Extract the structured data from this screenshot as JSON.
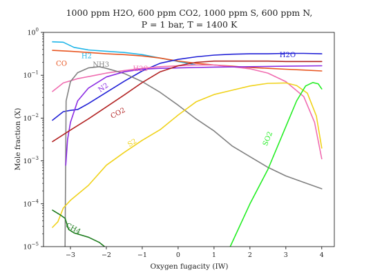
{
  "chart_data": {
    "type": "line",
    "title": "1000 ppm H2O, 600 ppm CO2, 1000 ppm S, 600 ppm N,",
    "subtitle": "P = 1 bar, T = 1400 K",
    "xlabel": "Oxygen fugacity (IW)",
    "ylabel": "Mole fraction (X)",
    "xlim": [
      -3.75,
      4.35
    ],
    "ylim_log10": [
      -5,
      0
    ],
    "yscale": "log",
    "grid": false,
    "legend": "none",
    "xticks": [
      {
        "value": -3,
        "label": "−3"
      },
      {
        "value": -2,
        "label": "−2"
      },
      {
        "value": -1,
        "label": "−1"
      },
      {
        "value": 0,
        "label": "0"
      },
      {
        "value": 1,
        "label": "1"
      },
      {
        "value": 2,
        "label": "2"
      },
      {
        "value": 3,
        "label": "3"
      },
      {
        "value": 4,
        "label": "4"
      }
    ],
    "yticks": [
      {
        "log10": -5,
        "base": "10",
        "exp": "−5"
      },
      {
        "log10": -4,
        "base": "10",
        "exp": "−4"
      },
      {
        "log10": -3,
        "base": "10",
        "exp": "−3"
      },
      {
        "log10": -2,
        "base": "10",
        "exp": "−2"
      },
      {
        "log10": -1,
        "base": "10",
        "exp": "−1"
      },
      {
        "log10": 0,
        "base": "10",
        "exp": "0"
      }
    ],
    "series": [
      {
        "name": "H2",
        "color": "#1fb5e8",
        "label_at": [
          -2.55,
          -0.6
        ],
        "label_rotate": 0,
        "points": [
          [
            -3.5,
            -0.22
          ],
          [
            -3.2,
            -0.23
          ],
          [
            -2.9,
            -0.35
          ],
          [
            -2.5,
            -0.41
          ],
          [
            -2,
            -0.44
          ],
          [
            -1.5,
            -0.47
          ],
          [
            -1,
            -0.52
          ],
          [
            -0.5,
            -0.6
          ],
          [
            0,
            -0.68
          ],
          [
            0.5,
            -0.76
          ]
        ]
      },
      {
        "name": "CO",
        "color": "#e8541f",
        "label_at": [
          -3.25,
          -0.78
        ],
        "label_rotate": 0,
        "points": [
          [
            -3.5,
            -0.42
          ],
          [
            -3,
            -0.44
          ],
          [
            -2.5,
            -0.47
          ],
          [
            -2,
            -0.5
          ],
          [
            -1.5,
            -0.52
          ],
          [
            -1,
            -0.55
          ],
          [
            -0.5,
            -0.6
          ],
          [
            0,
            -0.67
          ],
          [
            0.5,
            -0.72
          ],
          [
            1,
            -0.76
          ],
          [
            1.5,
            -0.79
          ],
          [
            2,
            -0.82
          ],
          [
            2.5,
            -0.84
          ],
          [
            3,
            -0.86
          ],
          [
            3.5,
            -0.88
          ],
          [
            4,
            -0.9
          ]
        ]
      },
      {
        "name": "H2O",
        "color": "#1f1fd6",
        "label_at": [
          3.05,
          -0.58
        ],
        "label_rotate": 0,
        "points": [
          [
            -3.5,
            -2.05
          ],
          [
            -3.2,
            -1.85
          ],
          [
            -3,
            -1.82
          ],
          [
            -2.8,
            -1.8
          ],
          [
            -2.5,
            -1.66
          ],
          [
            -2,
            -1.4
          ],
          [
            -1.5,
            -1.14
          ],
          [
            -1,
            -0.9
          ],
          [
            -0.5,
            -0.72
          ],
          [
            0,
            -0.63
          ],
          [
            0.5,
            -0.57
          ],
          [
            1,
            -0.53
          ],
          [
            1.5,
            -0.51
          ],
          [
            2,
            -0.5
          ],
          [
            2.5,
            -0.5
          ],
          [
            3,
            -0.49
          ],
          [
            3.5,
            -0.49
          ],
          [
            4,
            -0.5
          ]
        ]
      },
      {
        "name": "H2S",
        "color": "#f06cb0",
        "label_at": [
          -1.05,
          -0.9
        ],
        "label_rotate": 0,
        "points": [
          [
            -3.5,
            -1.38
          ],
          [
            -3.2,
            -1.18
          ],
          [
            -2.8,
            -1.08
          ],
          [
            -2.3,
            -1
          ],
          [
            -2,
            -0.95
          ],
          [
            -1.5,
            -0.89
          ],
          [
            -1,
            -0.84
          ],
          [
            -0.5,
            -0.8
          ],
          [
            0,
            -0.78
          ],
          [
            0.5,
            -0.76
          ],
          [
            1,
            -0.76
          ],
          [
            1.5,
            -0.8
          ],
          [
            2,
            -0.85
          ],
          [
            2.5,
            -0.95
          ],
          [
            3,
            -1.15
          ],
          [
            3.5,
            -1.5
          ],
          [
            3.8,
            -2.1
          ],
          [
            4,
            -2.95
          ]
        ]
      },
      {
        "name": "NH3",
        "color": "#808080",
        "label_at": [
          -2.15,
          -0.8
        ],
        "label_rotate": 0,
        "points": [
          [
            -3.15,
            -5
          ],
          [
            -3.12,
            -1.6
          ],
          [
            -3,
            -1.15
          ],
          [
            -2.8,
            -0.94
          ],
          [
            -2.5,
            -0.83
          ],
          [
            -2.2,
            -0.8
          ],
          [
            -2,
            -0.84
          ],
          [
            -1.5,
            -0.96
          ],
          [
            -1,
            -1.15
          ],
          [
            -0.5,
            -1.4
          ],
          [
            0,
            -1.7
          ],
          [
            0.5,
            -2.02
          ],
          [
            1,
            -2.3
          ],
          [
            1.5,
            -2.65
          ],
          [
            2,
            -2.9
          ],
          [
            2.5,
            -3.15
          ],
          [
            3,
            -3.35
          ],
          [
            3.5,
            -3.5
          ],
          [
            4,
            -3.65
          ]
        ]
      },
      {
        "name": "N2",
        "color": "#8a2be2",
        "label_at": [
          -2.05,
          -1.33
        ],
        "label_rotate": -35,
        "points": [
          [
            -3.13,
            -3.1
          ],
          [
            -3.08,
            -2.5
          ],
          [
            -3,
            -2.1
          ],
          [
            -2.8,
            -1.6
          ],
          [
            -2.5,
            -1.3
          ],
          [
            -2,
            -1.04
          ],
          [
            -1.5,
            -0.92
          ],
          [
            -1,
            -0.86
          ],
          [
            -0.5,
            -0.84
          ],
          [
            0,
            -0.83
          ],
          [
            0.5,
            -0.82
          ],
          [
            1,
            -0.81
          ],
          [
            2,
            -0.8
          ],
          [
            3,
            -0.79
          ],
          [
            4,
            -0.78
          ]
        ]
      },
      {
        "name": "CO2",
        "color": "#b22222",
        "label_at": [
          -1.65,
          -1.93
        ],
        "label_rotate": -28,
        "points": [
          [
            -3.5,
            -2.55
          ],
          [
            -3,
            -2.28
          ],
          [
            -2.5,
            -2.02
          ],
          [
            -2,
            -1.74
          ],
          [
            -1.5,
            -1.46
          ],
          [
            -1,
            -1.17
          ],
          [
            -0.5,
            -0.92
          ],
          [
            0,
            -0.78
          ],
          [
            0.5,
            -0.7
          ],
          [
            1,
            -0.67
          ],
          [
            1.5,
            -0.67
          ],
          [
            2,
            -0.67
          ],
          [
            2.5,
            -0.67
          ],
          [
            3,
            -0.68
          ],
          [
            3.5,
            -0.68
          ],
          [
            4,
            -0.68
          ]
        ]
      },
      {
        "name": "S2",
        "color": "#f0d21a",
        "label_at": [
          -1.25,
          -2.62
        ],
        "label_rotate": -32,
        "points": [
          [
            -3.5,
            -4.55
          ],
          [
            -3.35,
            -4.42
          ],
          [
            -3.2,
            -4.1
          ],
          [
            -3,
            -3.92
          ],
          [
            -2.5,
            -3.57
          ],
          [
            -2,
            -3.1
          ],
          [
            -1.5,
            -2.8
          ],
          [
            -1,
            -2.52
          ],
          [
            -0.5,
            -2.27
          ],
          [
            0,
            -1.93
          ],
          [
            0.5,
            -1.62
          ],
          [
            1,
            -1.45
          ],
          [
            1.5,
            -1.35
          ],
          [
            2,
            -1.25
          ],
          [
            2.5,
            -1.19
          ],
          [
            3,
            -1.18
          ],
          [
            3.3,
            -1.24
          ],
          [
            3.6,
            -1.42
          ],
          [
            3.85,
            -1.95
          ],
          [
            4,
            -2.7
          ]
        ]
      },
      {
        "name": "SO2",
        "color": "#22ee22",
        "label_at": [
          2.55,
          -2.5
        ],
        "label_rotate": -68,
        "points": [
          [
            1.45,
            -5
          ],
          [
            2,
            -4
          ],
          [
            2.5,
            -3.2
          ],
          [
            3,
            -2.2
          ],
          [
            3.3,
            -1.6
          ],
          [
            3.55,
            -1.25
          ],
          [
            3.75,
            -1.17
          ],
          [
            3.9,
            -1.2
          ],
          [
            4,
            -1.32
          ]
        ]
      },
      {
        "name": "CH4",
        "color": "#1a7a1a",
        "label_at": [
          -2.95,
          -4.62
        ],
        "label_rotate": 28,
        "points": [
          [
            -3.5,
            -4.15
          ],
          [
            -3.3,
            -4.25
          ],
          [
            -3.15,
            -4.34
          ],
          [
            -3.05,
            -4.6
          ],
          [
            -2.9,
            -4.68
          ],
          [
            -2.5,
            -4.78
          ],
          [
            -2.2,
            -4.9
          ],
          [
            -2.05,
            -5
          ]
        ]
      }
    ]
  }
}
